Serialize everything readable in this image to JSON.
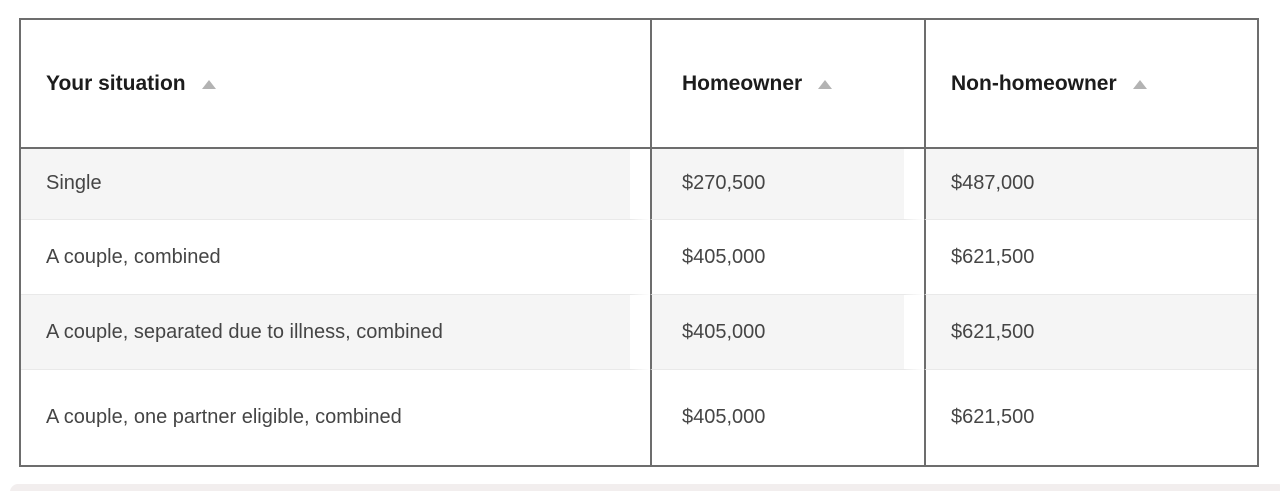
{
  "table": {
    "name": "assets-test-limits-table",
    "columns": [
      {
        "label": "Your situation",
        "sort_icon": "sort-ascending-icon",
        "sorted": "ascending"
      },
      {
        "label": "Homeowner",
        "sort_icon": "sort-ascending-icon",
        "sorted": "ascending"
      },
      {
        "label": "Non-homeowner",
        "sort_icon": "sort-ascending-icon",
        "sorted": "ascending"
      }
    ],
    "rows": [
      {
        "cells": [
          "Single",
          "$270,500",
          "$487,000"
        ]
      },
      {
        "cells": [
          "A couple, combined",
          "$405,000",
          "$621,500"
        ]
      },
      {
        "cells": [
          "A couple, separated due to illness, combined",
          "$405,000",
          "$621,500"
        ]
      },
      {
        "cells": [
          "A couple, one partner eligible, combined",
          "$405,000",
          "$621,500"
        ]
      }
    ]
  },
  "colors": {
    "table_border": "#6d6d6d",
    "row_stripe": "#f5f5f5",
    "header_text": "#1c1c1c",
    "body_text": "#454545",
    "sort_icon": "#b3b3b3",
    "bottom_bar": "#f2eeee"
  }
}
